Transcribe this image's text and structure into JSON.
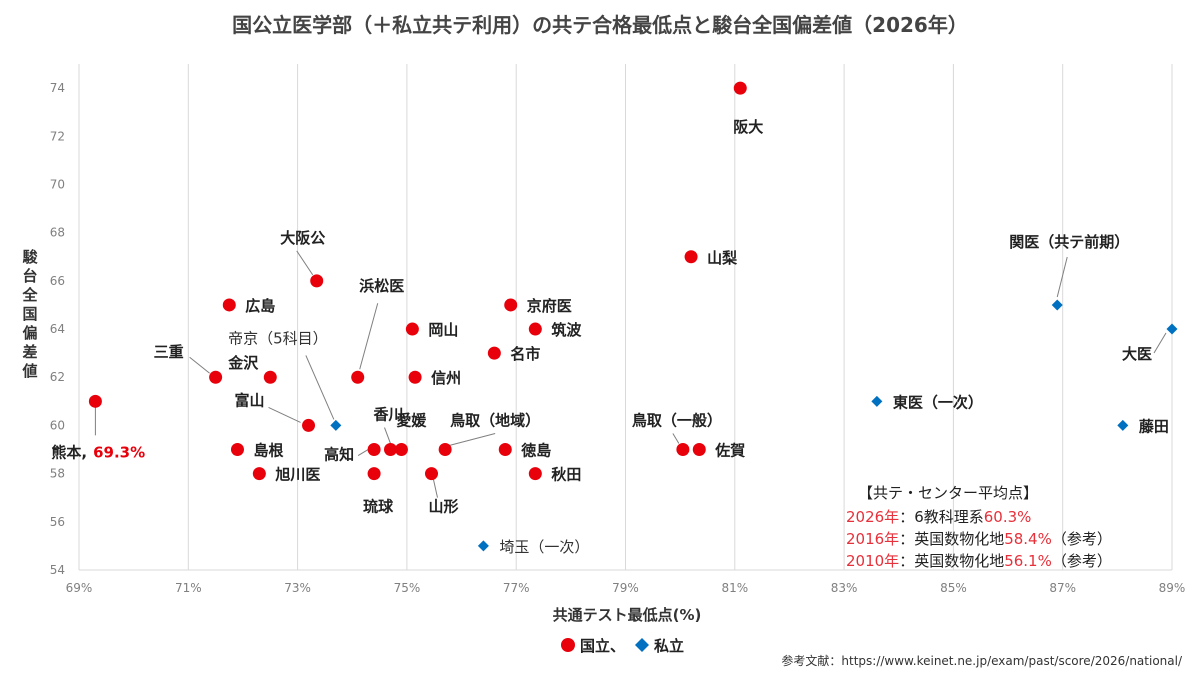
{
  "chart_data": {
    "type": "scatter",
    "title": "国公立医学部（＋私立共テ利用）の共テ合格最低点と駿台全国偏差値（2026年）",
    "xlabel": "共通テスト最低点(%)",
    "ylabel": "駿台全国偏差値",
    "xlim": [
      69,
      89
    ],
    "ylim": [
      54,
      75
    ],
    "x_ticks": [
      "69%",
      "71%",
      "73%",
      "75%",
      "77%",
      "79%",
      "81%",
      "83%",
      "85%",
      "87%",
      "89%"
    ],
    "y_ticks": [
      "54",
      "56",
      "58",
      "60",
      "62",
      "64",
      "66",
      "68",
      "70",
      "72",
      "74"
    ],
    "grid": "vertical",
    "series": [
      {
        "name": "国立、",
        "color": "#e8000b",
        "marker": "circle",
        "points": [
          {
            "label": "熊本,",
            "extra": "69.3%",
            "x": 69.3,
            "y": 61
          },
          {
            "label": "三重",
            "x": 71.5,
            "y": 62
          },
          {
            "label": "広島",
            "x": 71.75,
            "y": 65
          },
          {
            "label": "島根",
            "x": 71.9,
            "y": 59
          },
          {
            "label": "旭川医",
            "x": 72.3,
            "y": 58
          },
          {
            "label": "金沢",
            "x": 72.5,
            "y": 62
          },
          {
            "label": "富山",
            "x": 73.2,
            "y": 60
          },
          {
            "label": "大阪公",
            "x": 73.35,
            "y": 66
          },
          {
            "label": "浜松医",
            "x": 74.1,
            "y": 62
          },
          {
            "label": "高知",
            "x": 74.4,
            "y": 59
          },
          {
            "label": "琉球",
            "x": 74.4,
            "y": 58
          },
          {
            "label": "香川",
            "x": 74.7,
            "y": 59
          },
          {
            "label": "愛媛",
            "x": 74.9,
            "y": 59
          },
          {
            "label": "岡山",
            "x": 75.1,
            "y": 64
          },
          {
            "label": "信州",
            "x": 75.15,
            "y": 62
          },
          {
            "label": "山形",
            "x": 75.45,
            "y": 58
          },
          {
            "label": "鳥取（地域）",
            "x": 75.7,
            "y": 59
          },
          {
            "label": "名市",
            "x": 76.6,
            "y": 63
          },
          {
            "label": "徳島",
            "x": 76.8,
            "y": 59
          },
          {
            "label": "京府医",
            "x": 76.9,
            "y": 65
          },
          {
            "label": "筑波",
            "x": 77.35,
            "y": 64
          },
          {
            "label": "秋田",
            "x": 77.35,
            "y": 58
          },
          {
            "label": "山梨",
            "x": 80.2,
            "y": 67
          },
          {
            "label": "鳥取（一般）",
            "x": 80.05,
            "y": 59
          },
          {
            "label": "佐賀",
            "x": 80.35,
            "y": 59
          },
          {
            "label": "阪大",
            "x": 81.1,
            "y": 74
          }
        ]
      },
      {
        "name": "私立",
        "color": "#0070c0",
        "marker": "diamond",
        "points": [
          {
            "label": "帝京（5科目）",
            "x": 73.7,
            "y": 60
          },
          {
            "label": "埼玉（一次）",
            "x": 76.4,
            "y": 55
          },
          {
            "label": "東医（一次）",
            "x": 83.6,
            "y": 61
          },
          {
            "label": "関医（共テ前期）",
            "x": 86.9,
            "y": 65
          },
          {
            "label": "藤田",
            "x": 88.1,
            "y": 60
          },
          {
            "label": "大医",
            "x": 89.0,
            "y": 64
          }
        ]
      }
    ],
    "legend": {
      "placement": "bottom-center",
      "items": [
        "国立、",
        "私立"
      ]
    },
    "annotation": {
      "title": "【共テ・センター平均点】",
      "rows": [
        {
          "year": "2026年",
          "text": "：6教科理系",
          "value": "60.3%",
          "suffix": ""
        },
        {
          "year": "2016年",
          "text": "：英国数物化地",
          "value": "58.4%",
          "suffix": "（参考）"
        },
        {
          "year": "2010年",
          "text": "：英国数物化地",
          "value": "56.1%",
          "suffix": "（参考）"
        }
      ]
    },
    "source": "参考文献：https://www.keinet.ne.jp/exam/past/score/2026/national/"
  }
}
